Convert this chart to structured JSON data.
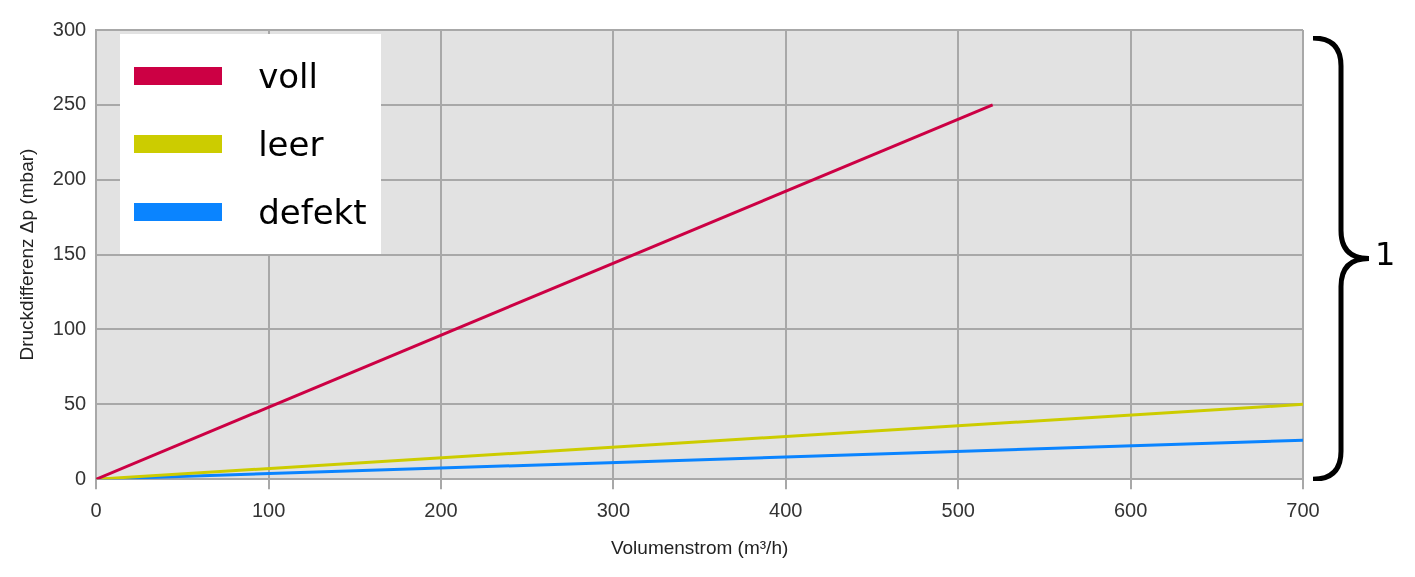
{
  "chart_data": {
    "type": "line",
    "xlabel": "Volumenstrom (m³/h)",
    "ylabel": "Druckdifferenz Δp (mbar)",
    "series": [
      {
        "name": "voll",
        "color": "#cc0044",
        "x": [
          0,
          520
        ],
        "values": [
          0,
          250
        ]
      },
      {
        "name": "leer",
        "color": "#cccc00",
        "x": [
          0,
          700
        ],
        "values": [
          0,
          50
        ]
      },
      {
        "name": "defekt",
        "color": "#0a84ff",
        "x": [
          0,
          700
        ],
        "values": [
          0,
          26
        ]
      }
    ],
    "xlim": [
      0,
      700
    ],
    "xticks": [
      0,
      100,
      200,
      300,
      400,
      500,
      600,
      700
    ],
    "ylim": [
      0,
      300
    ],
    "yticks": [
      0,
      50,
      100,
      150,
      200,
      250,
      300
    ],
    "grid": true,
    "legend": "top left",
    "marker": "none",
    "line_style": "solid",
    "annotations": [
      "1"
    ]
  }
}
